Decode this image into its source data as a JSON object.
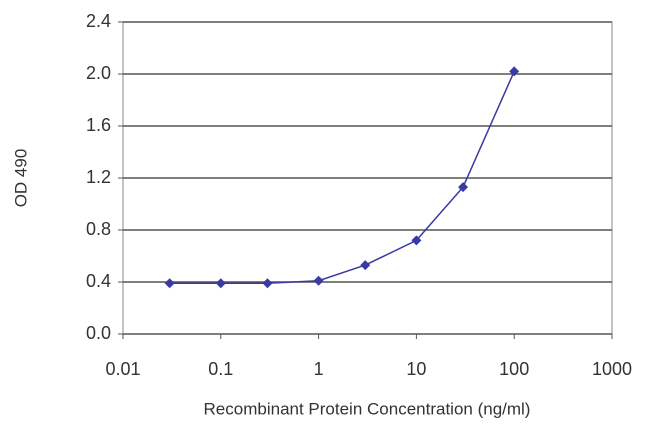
{
  "chart_data": {
    "type": "line",
    "y_label": "OD 490",
    "x_label": "Recombinant Protein Concentration (ng/ml)",
    "x": [
      0.03,
      0.1,
      0.3,
      1,
      3,
      10,
      30,
      100
    ],
    "series": [
      {
        "color": "#3a3aa0",
        "values": [
          0.39,
          0.39,
          0.39,
          0.41,
          0.53,
          0.72,
          1.13,
          2.02
        ]
      }
    ],
    "xscale": "log",
    "xlim": [
      0.01,
      1000
    ],
    "xticks": [
      0.01,
      0.1,
      1,
      10,
      100,
      1000
    ],
    "ylim": [
      0,
      2.4
    ],
    "yticks": [
      {
        "value": 0,
        "label": "0.0"
      },
      0.4,
      0.8,
      1.2,
      1.6,
      {
        "value": 2,
        "label": "2.0"
      },
      2.4
    ],
    "grid": true
  }
}
